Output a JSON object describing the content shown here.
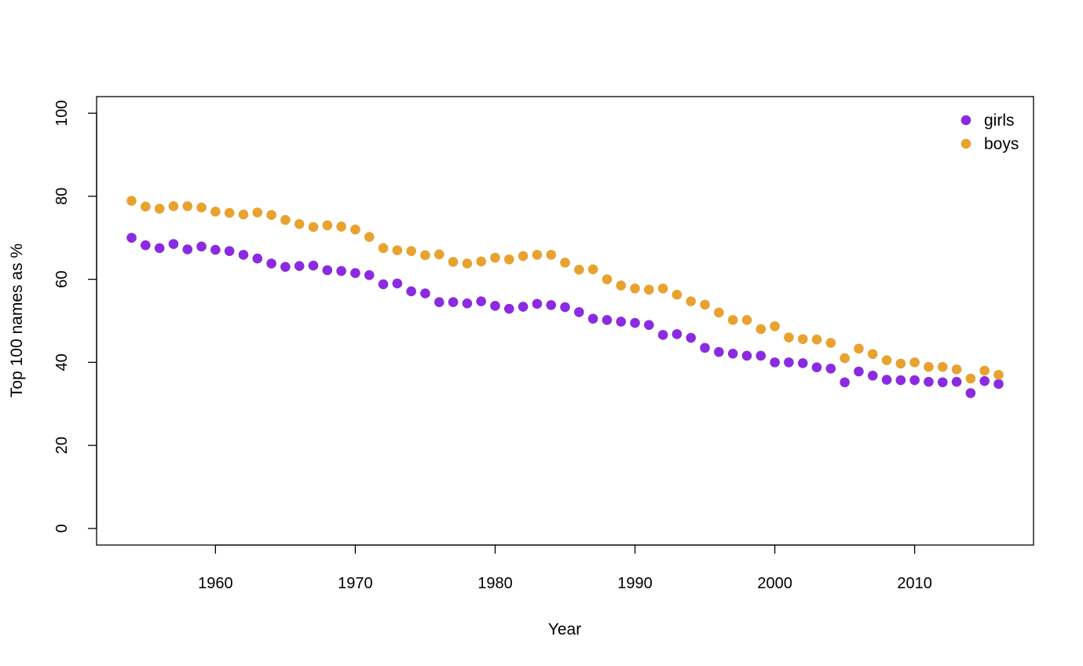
{
  "chart_data": {
    "type": "scatter",
    "xlabel": "Year",
    "ylabel": "Top 100 names as %",
    "xlim": [
      1951.5,
      2018.5
    ],
    "ylim": [
      -4,
      104
    ],
    "x_ticks": [
      "1960",
      "1970",
      "1980",
      "1990",
      "2000",
      "2010"
    ],
    "y_ticks": [
      "0",
      "20",
      "40",
      "60",
      "80",
      "100"
    ],
    "grid": false,
    "legend": "top-right",
    "x": [
      1954,
      1955,
      1956,
      1957,
      1958,
      1959,
      1960,
      1961,
      1962,
      1963,
      1964,
      1965,
      1966,
      1967,
      1968,
      1969,
      1970,
      1971,
      1972,
      1973,
      1974,
      1975,
      1976,
      1977,
      1978,
      1979,
      1980,
      1981,
      1982,
      1983,
      1984,
      1985,
      1986,
      1987,
      1988,
      1989,
      1990,
      1991,
      1992,
      1993,
      1994,
      1995,
      1996,
      1997,
      1998,
      1999,
      2000,
      2001,
      2002,
      2003,
      2004,
      2005,
      2006,
      2007,
      2008,
      2009,
      2010,
      2011,
      2012,
      2013,
      2014,
      2015,
      2016
    ],
    "series": [
      {
        "name": "girls",
        "color": "#8a2be2",
        "values": [
          70.0,
          68.2,
          67.5,
          68.5,
          67.2,
          67.9,
          67.1,
          66.8,
          65.9,
          65.0,
          63.8,
          63.0,
          63.2,
          63.3,
          62.2,
          62.0,
          61.5,
          61.0,
          58.8,
          59.0,
          57.1,
          56.6,
          54.5,
          54.5,
          54.2,
          54.7,
          53.6,
          52.9,
          53.4,
          54.1,
          53.8,
          53.3,
          52.1,
          50.5,
          50.2,
          49.8,
          49.5,
          49.0,
          46.6,
          46.8,
          45.9,
          43.5,
          42.5,
          42.1,
          41.6,
          41.6,
          40.0,
          40.0,
          39.8,
          38.8,
          38.5,
          35.2,
          37.8,
          36.8,
          35.8,
          35.7,
          35.7,
          35.3,
          35.2,
          35.3,
          32.6,
          35.5,
          34.8
        ]
      },
      {
        "name": "boys",
        "color": "#e8a22f",
        "values": [
          78.9,
          77.5,
          77.0,
          77.6,
          77.6,
          77.3,
          76.3,
          76.0,
          75.6,
          76.1,
          75.5,
          74.3,
          73.3,
          72.6,
          73.0,
          72.7,
          72.0,
          70.2,
          67.5,
          67.0,
          66.8,
          65.8,
          66.0,
          64.2,
          63.8,
          64.3,
          65.2,
          64.8,
          65.6,
          65.9,
          65.9,
          64.0,
          62.3,
          62.4,
          60.0,
          58.5,
          57.8,
          57.5,
          57.8,
          56.3,
          54.7,
          53.9,
          52.0,
          50.2,
          50.2,
          48.0,
          48.7,
          46.0,
          45.6,
          45.5,
          44.7,
          41.0,
          43.3,
          42.0,
          40.5,
          39.7,
          40.0,
          38.9,
          38.9,
          38.3,
          36.1,
          38.0,
          37.0
        ]
      }
    ]
  }
}
